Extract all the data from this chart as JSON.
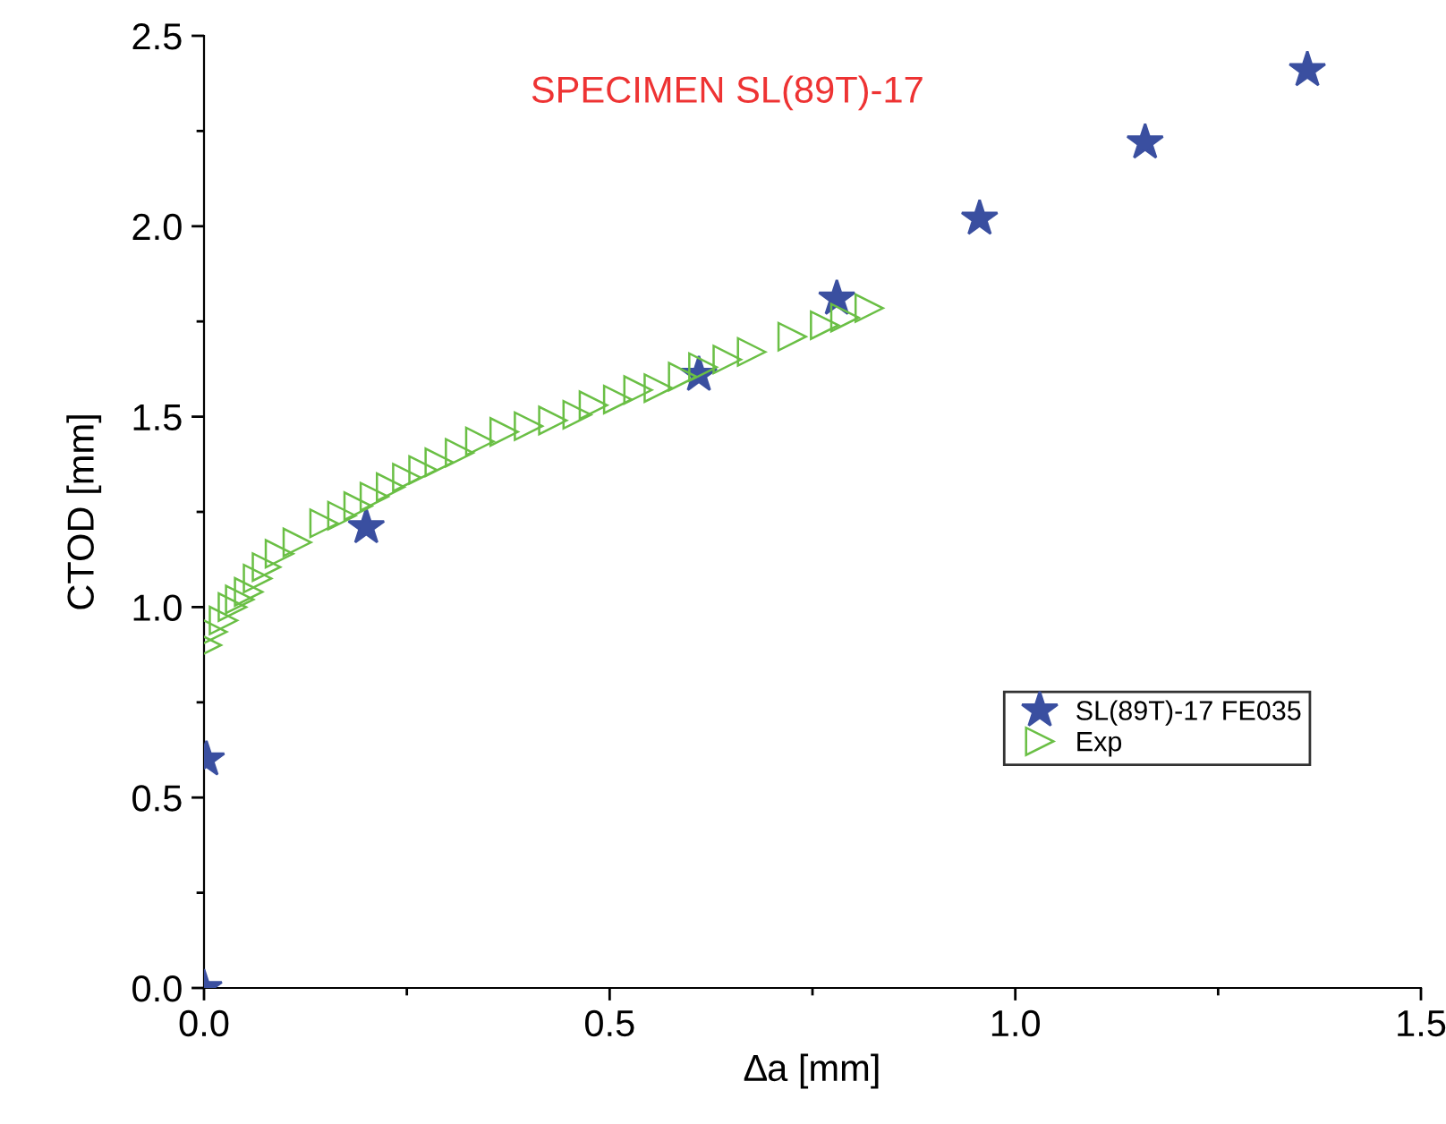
{
  "chart_data": {
    "type": "scatter",
    "xlabel": "∆a [mm]",
    "ylabel": "CTOD [mm]",
    "annotations": [
      "SPECIMEN SL(89T)-17"
    ],
    "xlim": [
      0,
      1.5
    ],
    "ylim": [
      0,
      2.5
    ],
    "xticks": [
      {
        "value": 0,
        "label": "0.0"
      },
      {
        "value": 0.25,
        "label": null
      },
      0.5,
      {
        "value": 0.75,
        "label": null
      },
      {
        "value": 1,
        "label": "1.0"
      },
      {
        "value": 1.25,
        "label": null
      },
      1.5
    ],
    "yticks": [
      {
        "value": 0,
        "label": "0.0"
      },
      {
        "value": 0.25,
        "label": null
      },
      0.5,
      {
        "value": 0.75,
        "label": null
      },
      {
        "value": 1,
        "label": "1.0"
      },
      {
        "value": 1.25,
        "label": null
      },
      1.5,
      {
        "value": 1.75,
        "label": null
      },
      {
        "value": 2,
        "label": "2.0"
      },
      {
        "value": 2.25,
        "label": null
      },
      2.5
    ],
    "grid": false,
    "legend": "bottom right",
    "series": [
      {
        "name": "SL(89T)-17 FE035",
        "color": "#3a4fa0",
        "marker": "star",
        "x": [
          0,
          0.003,
          0.2,
          0.61,
          0.78,
          0.956,
          1.16,
          1.36
        ],
        "values": [
          0,
          0.6,
          1.21,
          1.61,
          1.81,
          2.02,
          2.22,
          2.41
        ]
      },
      {
        "name": "Exp",
        "color": "#6abf45",
        "marker": "triangle",
        "x": [
          0.004,
          0.011,
          0.024,
          0.035,
          0.044,
          0.055,
          0.066,
          0.077,
          0.093,
          0.115,
          0.148,
          0.17,
          0.19,
          0.21,
          0.23,
          0.25,
          0.27,
          0.29,
          0.315,
          0.34,
          0.37,
          0.4,
          0.43,
          0.46,
          0.48,
          0.51,
          0.535,
          0.56,
          0.59,
          0.615,
          0.645,
          0.675,
          0.725,
          0.765,
          0.79,
          0.82
        ],
        "values": [
          0.9,
          0.935,
          0.965,
          1.0,
          1.02,
          1.04,
          1.075,
          1.105,
          1.14,
          1.17,
          1.22,
          1.24,
          1.265,
          1.29,
          1.315,
          1.34,
          1.36,
          1.38,
          1.405,
          1.435,
          1.46,
          1.475,
          1.49,
          1.505,
          1.53,
          1.545,
          1.57,
          1.575,
          1.605,
          1.63,
          1.65,
          1.67,
          1.71,
          1.74,
          1.76,
          1.785
        ]
      }
    ]
  }
}
